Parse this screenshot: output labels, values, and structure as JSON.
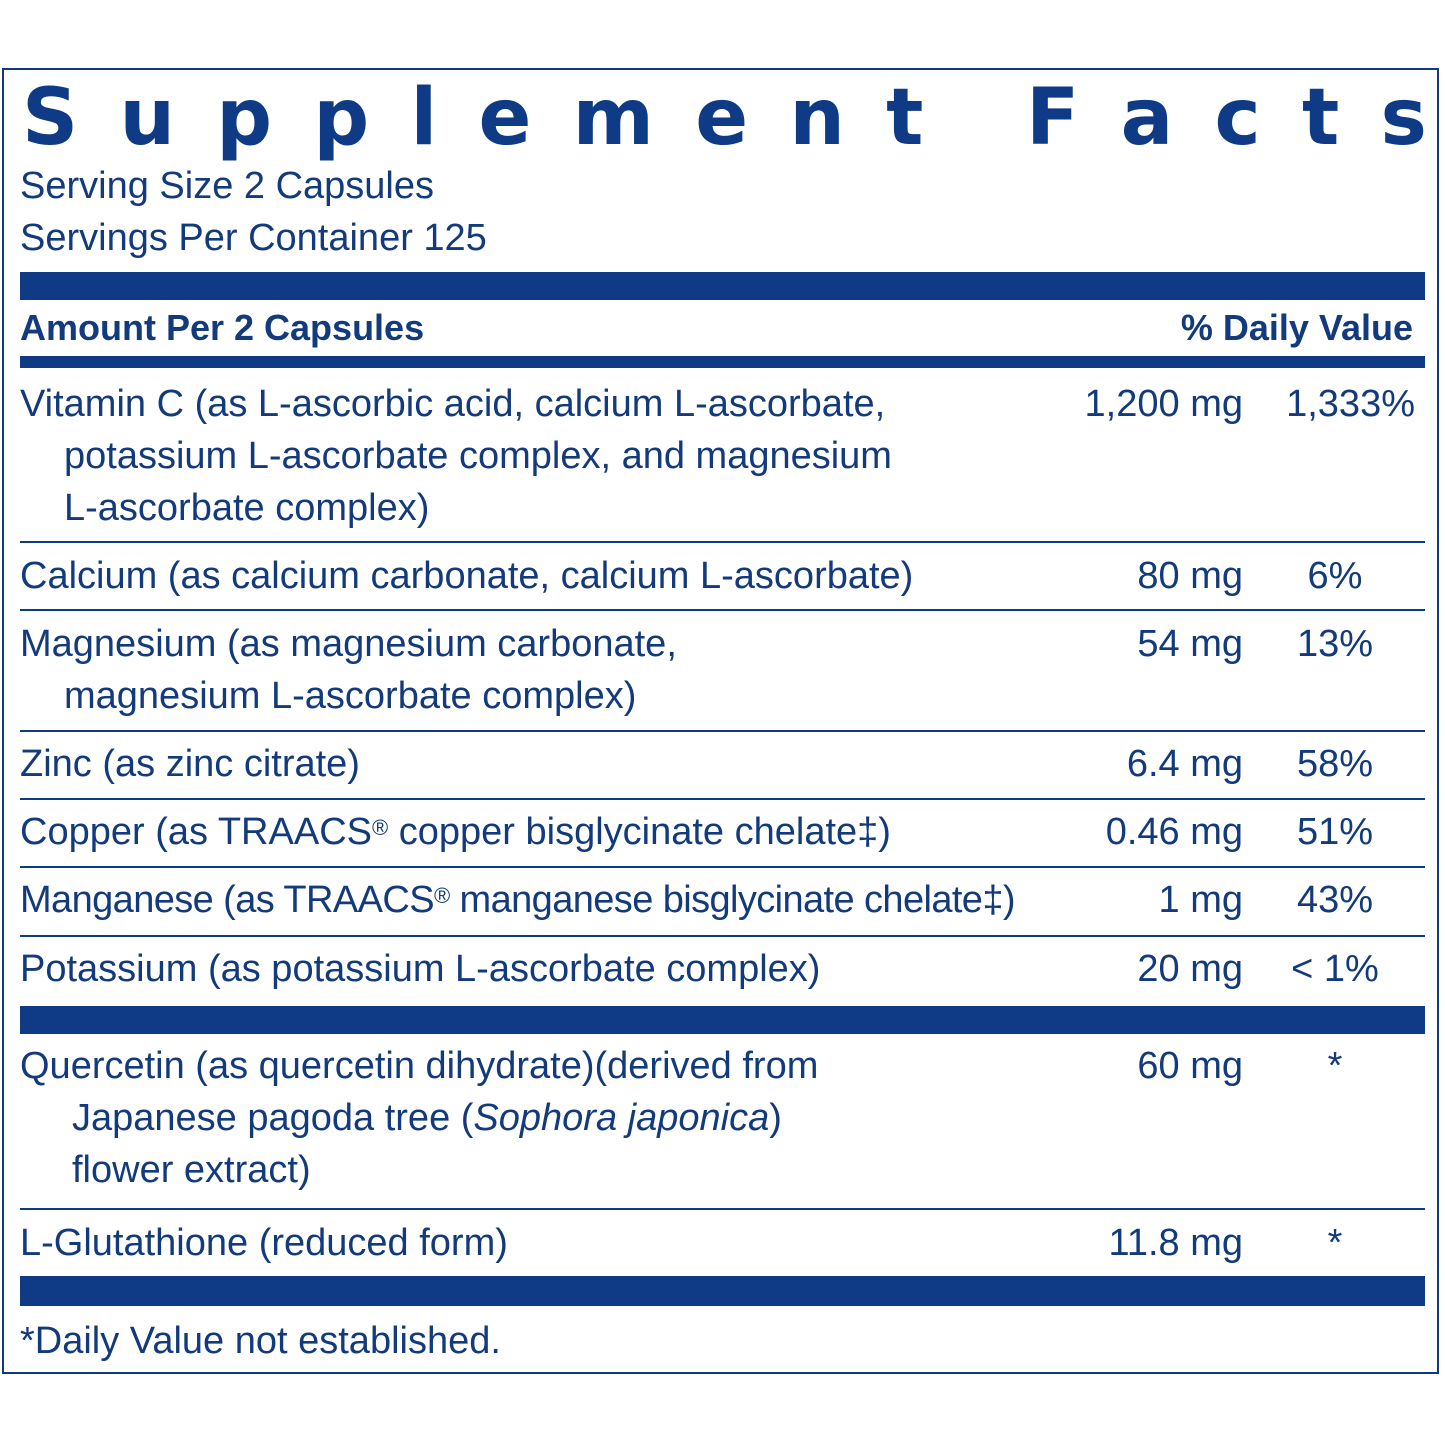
{
  "title_letters": [
    "S",
    "u",
    "p",
    "p",
    "l",
    "e",
    "m",
    "e",
    "n",
    "t",
    "",
    "F",
    "a",
    "c",
    "t",
    "s"
  ],
  "title": "Supplement Facts",
  "serving_size": "Serving Size 2 Capsules",
  "servings_per_container": "Servings Per Container 125",
  "header": {
    "amount": "Amount Per 2 Capsules",
    "dv": "% Daily Value"
  },
  "rows": [
    {
      "lines": [
        "Vitamin C (as L-ascorbic acid, calcium L-ascorbate,",
        "potassium L-ascorbate complex, and magnesium",
        "L-ascorbate complex)"
      ],
      "amount": "1,200 mg",
      "dv": "1,333%"
    },
    {
      "lines": [
        "Calcium (as calcium carbonate, calcium L-ascorbate)"
      ],
      "amount": "80 mg",
      "dv": "6%"
    },
    {
      "lines": [
        "Magnesium (as magnesium carbonate,",
        "magnesium L-ascorbate complex)"
      ],
      "amount": "54 mg",
      "dv": "13%"
    },
    {
      "lines": [
        "Zinc (as zinc citrate)"
      ],
      "amount": "6.4 mg",
      "dv": "58%"
    },
    {
      "lines": [
        "Copper (as TRAACS",
        "copper bisglycinate chelate‡)"
      ],
      "amount": "0.46 mg",
      "dv": "51%"
    },
    {
      "lines": [
        "Manganese (as TRAACS",
        "manganese bisglycinate chelate‡)"
      ],
      "amount": "1 mg",
      "dv": "43%"
    },
    {
      "lines": [
        "Potassium (as potassium L-ascorbate complex)"
      ],
      "amount": "20 mg",
      "dv": "< 1%"
    },
    {
      "lines": [
        "Quercetin (as quercetin dihydrate)(derived from",
        "Japanese pagoda tree (",
        "Sophora japonica",
        ")",
        "flower extract)"
      ],
      "amount": "60 mg",
      "dv": "*"
    },
    {
      "lines": [
        "L-Glutathione (reduced form)"
      ],
      "amount": "11.8 mg",
      "dv": "*"
    }
  ],
  "registered_mark": "®",
  "footnote": "*Daily Value not established."
}
